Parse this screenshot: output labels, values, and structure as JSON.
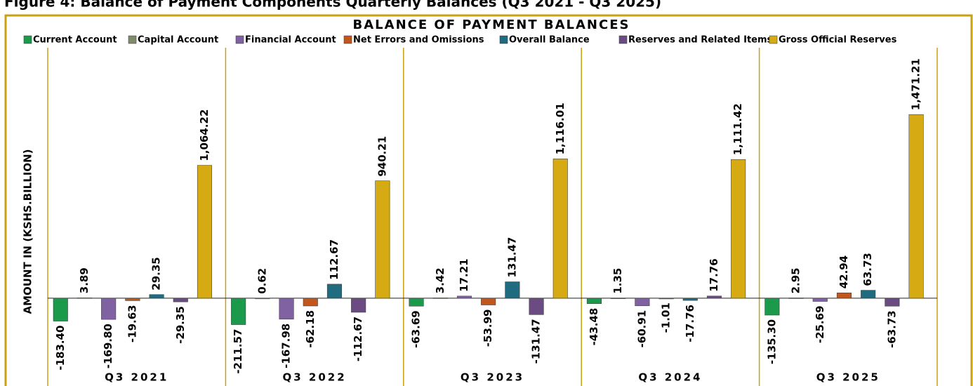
{
  "chart_data": {
    "type": "bar",
    "caption": "Figure 4: Balance of Payment Components Quarterly Balances (Q3 2021 - Q3 2025)",
    "title": "BALANCE OF PAYMENT BALANCES",
    "y_label": "AMOUNT IN (KSHS.BILLION)",
    "categories": [
      "Q3 2021",
      "Q3 2022",
      "Q3 2023",
      "Q3 2024",
      "Q3 2025"
    ],
    "ylim": [
      -675,
      2175
    ],
    "series": [
      {
        "name": "Current Account",
        "color": "#1a9a4a",
        "values": [
          -183.4,
          -211.57,
          -63.69,
          -43.48,
          -135.3
        ],
        "value_labels": [
          "-183.40",
          "-211.57",
          "-63.69",
          "-43.48",
          "-135.30"
        ]
      },
      {
        "name": "Capital Account",
        "color": "#7f8c6c",
        "values": [
          3.89,
          0.62,
          3.42,
          1.35,
          2.95
        ],
        "value_labels": [
          "3.89",
          "0.62",
          "3.42",
          "1.35",
          "2.95"
        ]
      },
      {
        "name": "Financial Account",
        "color": "#8062a2",
        "values": [
          -169.8,
          -167.98,
          17.21,
          -60.91,
          -25.69
        ],
        "value_labels": [
          "-169.80",
          "-167.98",
          "17.21",
          "-60.91",
          "-25.69"
        ]
      },
      {
        "name": "Net Errors and Omissions",
        "color": "#c2561c",
        "values": [
          -19.63,
          -62.18,
          -53.99,
          -1.01,
          42.94
        ],
        "value_labels": [
          "-19.63",
          "-62.18",
          "-53.99",
          "-1.01",
          "42.94"
        ]
      },
      {
        "name": "Overall Balance",
        "color": "#1f6b80",
        "values": [
          29.35,
          112.67,
          131.47,
          -17.76,
          63.73
        ],
        "value_labels": [
          "29.35",
          "112.67",
          "131.47",
          "-17.76",
          "63.73"
        ]
      },
      {
        "name": "Reserves and Related Items",
        "color": "#6a4c82",
        "values": [
          -29.35,
          -112.67,
          -131.47,
          17.76,
          -63.73
        ],
        "value_labels": [
          "-29.35",
          "-112.67",
          "-131.47",
          "17.76",
          "-63.73"
        ]
      },
      {
        "name": "Gross Official Reserves",
        "color": "#d6aa12",
        "values": [
          1064.22,
          940.21,
          1116.01,
          1111.42,
          1471.21
        ],
        "value_labels": [
          "1,064.22",
          "940.21",
          "1,116.01",
          "1,111.42",
          "1,471.21"
        ]
      }
    ]
  }
}
